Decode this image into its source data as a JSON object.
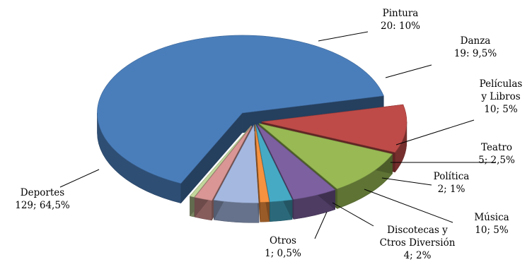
{
  "chart_data": {
    "type": "pie",
    "style": "3d-exploded",
    "slices": [
      {
        "name": "Deportes",
        "count": 129,
        "percent": "64,5%",
        "value_label": "129; 64,5%",
        "color": "#4A7EBB"
      },
      {
        "name": "Pintura",
        "count": 20,
        "percent": "10%",
        "value_label": "20: 10%",
        "color": "#BE4B48"
      },
      {
        "name": "Danza",
        "count": 19,
        "percent": "9,5%",
        "value_label": "19: 9,5%",
        "color": "#98B954"
      },
      {
        "name": "Películas y Libros",
        "name_lines": [
          "Películas",
          "y Libros"
        ],
        "count": 10,
        "percent": "5%",
        "value_label": "10; 5%",
        "color": "#7D60A0"
      },
      {
        "name": "Teatro",
        "count": 5,
        "percent": "2,5%",
        "value_label": "5; 2,5%",
        "color": "#46AAC5"
      },
      {
        "name": "Política",
        "count": 2,
        "percent": "1%",
        "value_label": "2; 1%",
        "color": "#F69240"
      },
      {
        "name": "Música",
        "count": 10,
        "percent": "5%",
        "value_label": "10; 5%",
        "color": "#A5B8E0"
      },
      {
        "name": "Discotecas y Ctros Diversión",
        "name_lines": [
          "Discotecas y",
          "Ctros Diversión"
        ],
        "count": 4,
        "percent": "2%",
        "value_label": "4; 2%",
        "color": "#D99694"
      },
      {
        "name": "Otros",
        "count": 1,
        "percent": "0,5%",
        "value_label": "1; 0,5%",
        "color": "#C3D69B"
      }
    ]
  }
}
